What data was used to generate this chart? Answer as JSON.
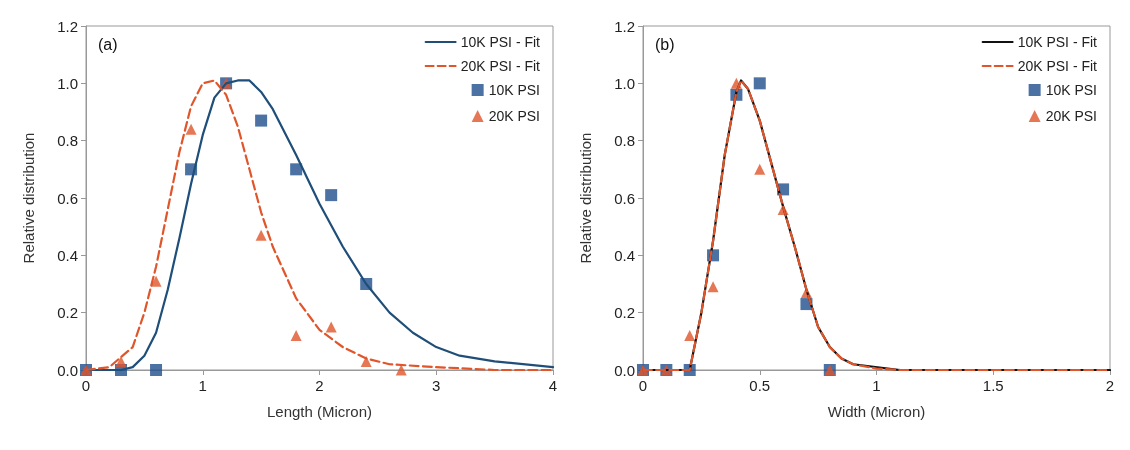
{
  "chart_data": [
    {
      "type": "line",
      "xlabel": "Length (Micron)",
      "ylabel": "Relative distribution",
      "annotations": [
        "(a)"
      ],
      "xlim": [
        0,
        4
      ],
      "xticks": [
        0,
        1,
        2,
        3,
        4
      ],
      "ylim": [
        0,
        1.2
      ],
      "yticks": [
        {
          "value": 0,
          "label": "0.0"
        },
        {
          "value": 0.2,
          "label": "0.2"
        },
        {
          "value": 0.4,
          "label": "0.4"
        },
        {
          "value": 0.6,
          "label": "0.6"
        },
        {
          "value": 0.8,
          "label": "0.8"
        },
        {
          "value": 1,
          "label": "1.0"
        },
        {
          "value": 1.2,
          "label": "1.2"
        }
      ],
      "grid": false,
      "legend": "top right",
      "series": [
        {
          "name": "10K PSI - Fit",
          "type": "line",
          "color": "#1f4e79",
          "line_style": "solid",
          "marker": "none",
          "x": [
            0,
            0.3,
            0.4,
            0.5,
            0.6,
            0.7,
            0.8,
            0.9,
            1.0,
            1.1,
            1.2,
            1.3,
            1.4,
            1.5,
            1.6,
            1.8,
            2.0,
            2.2,
            2.4,
            2.6,
            2.8,
            3.0,
            3.2,
            3.5,
            4.0
          ],
          "values": [
            0,
            0,
            0.01,
            0.05,
            0.13,
            0.28,
            0.46,
            0.65,
            0.82,
            0.95,
            1.0,
            1.01,
            1.01,
            0.97,
            0.91,
            0.75,
            0.58,
            0.43,
            0.3,
            0.2,
            0.13,
            0.08,
            0.05,
            0.03,
            0.01
          ]
        },
        {
          "name": "20K PSI - Fit",
          "type": "line",
          "color": "#e0552a",
          "line_style": "dashed",
          "marker": "none",
          "x": [
            0,
            0.2,
            0.4,
            0.5,
            0.6,
            0.7,
            0.8,
            0.9,
            1.0,
            1.1,
            1.2,
            1.3,
            1.4,
            1.5,
            1.6,
            1.8,
            2.0,
            2.2,
            2.4,
            2.6,
            3.0,
            3.5,
            4.0
          ],
          "values": [
            0,
            0.01,
            0.08,
            0.2,
            0.36,
            0.56,
            0.76,
            0.92,
            1.0,
            1.01,
            0.96,
            0.85,
            0.7,
            0.55,
            0.43,
            0.25,
            0.14,
            0.08,
            0.04,
            0.02,
            0.01,
            0,
            0
          ]
        },
        {
          "name": "10K PSI",
          "type": "scatter",
          "color": "#1f4e8c",
          "marker": "square",
          "x": [
            0,
            0.3,
            0.6,
            0.9,
            1.2,
            1.5,
            1.8,
            2.1,
            2.4
          ],
          "values": [
            0,
            0,
            0,
            0.7,
            1.0,
            0.87,
            0.7,
            0.61,
            0.3
          ]
        },
        {
          "name": "20K PSI",
          "type": "scatter",
          "color": "#e0552a",
          "marker": "triangle",
          "x": [
            0,
            0.3,
            0.6,
            0.9,
            1.2,
            1.5,
            1.8,
            2.1,
            2.4,
            2.7
          ],
          "values": [
            0,
            0.03,
            0.31,
            0.84,
            1.0,
            0.47,
            0.12,
            0.15,
            0.03,
            0
          ]
        }
      ]
    },
    {
      "type": "line",
      "xlabel": "Width (Micron)",
      "ylabel": "Relative distribution",
      "annotations": [
        "(b)"
      ],
      "xlim": [
        0,
        2
      ],
      "xticks": [
        0,
        0.5,
        1,
        1.5,
        2
      ],
      "ylim": [
        0,
        1.2
      ],
      "yticks": [
        {
          "value": 0,
          "label": "0.0"
        },
        {
          "value": 0.2,
          "label": "0.2"
        },
        {
          "value": 0.4,
          "label": "0.4"
        },
        {
          "value": 0.6,
          "label": "0.6"
        },
        {
          "value": 0.8,
          "label": "0.8"
        },
        {
          "value": 1,
          "label": "1.0"
        },
        {
          "value": 1.2,
          "label": "1.2"
        }
      ],
      "grid": false,
      "legend": "top right",
      "series": [
        {
          "name": "10K PSI - Fit",
          "type": "line",
          "color": "#111111",
          "line_style": "solid",
          "marker": "none",
          "x": [
            0,
            0.1,
            0.2,
            0.25,
            0.3,
            0.35,
            0.4,
            0.42,
            0.45,
            0.5,
            0.55,
            0.6,
            0.65,
            0.7,
            0.75,
            0.8,
            0.85,
            0.9,
            1.1,
            2.0
          ],
          "values": [
            0,
            0,
            0,
            0.2,
            0.45,
            0.75,
            0.97,
            1.01,
            0.98,
            0.87,
            0.72,
            0.57,
            0.43,
            0.28,
            0.15,
            0.08,
            0.04,
            0.02,
            0,
            0
          ]
        },
        {
          "name": "20K PSI - Fit",
          "type": "line",
          "color": "#e0552a",
          "line_style": "dashed",
          "marker": "none",
          "x": [
            0,
            0.1,
            0.2,
            0.25,
            0.3,
            0.35,
            0.4,
            0.42,
            0.45,
            0.5,
            0.55,
            0.6,
            0.65,
            0.7,
            0.75,
            0.8,
            0.85,
            0.9,
            1.0,
            1.1,
            2.0
          ],
          "values": [
            0,
            0,
            0,
            0.2,
            0.45,
            0.75,
            0.97,
            1.01,
            0.98,
            0.87,
            0.72,
            0.57,
            0.43,
            0.28,
            0.15,
            0.08,
            0.04,
            0.02,
            0.005,
            0,
            0
          ]
        },
        {
          "name": "10K PSI",
          "type": "scatter",
          "color": "#1f4e8c",
          "marker": "square",
          "x": [
            0,
            0.1,
            0.2,
            0.3,
            0.4,
            0.5,
            0.6,
            0.7,
            0.8
          ],
          "values": [
            0,
            0,
            0,
            0.4,
            0.96,
            1.0,
            0.63,
            0.23,
            0
          ]
        },
        {
          "name": "20K PSI",
          "type": "scatter",
          "color": "#e0552a",
          "marker": "triangle",
          "x": [
            0,
            0.1,
            0.2,
            0.3,
            0.4,
            0.5,
            0.6,
            0.7,
            0.8
          ],
          "values": [
            0,
            0,
            0.12,
            0.29,
            1.0,
            0.7,
            0.56,
            0.27,
            0
          ]
        }
      ]
    }
  ]
}
